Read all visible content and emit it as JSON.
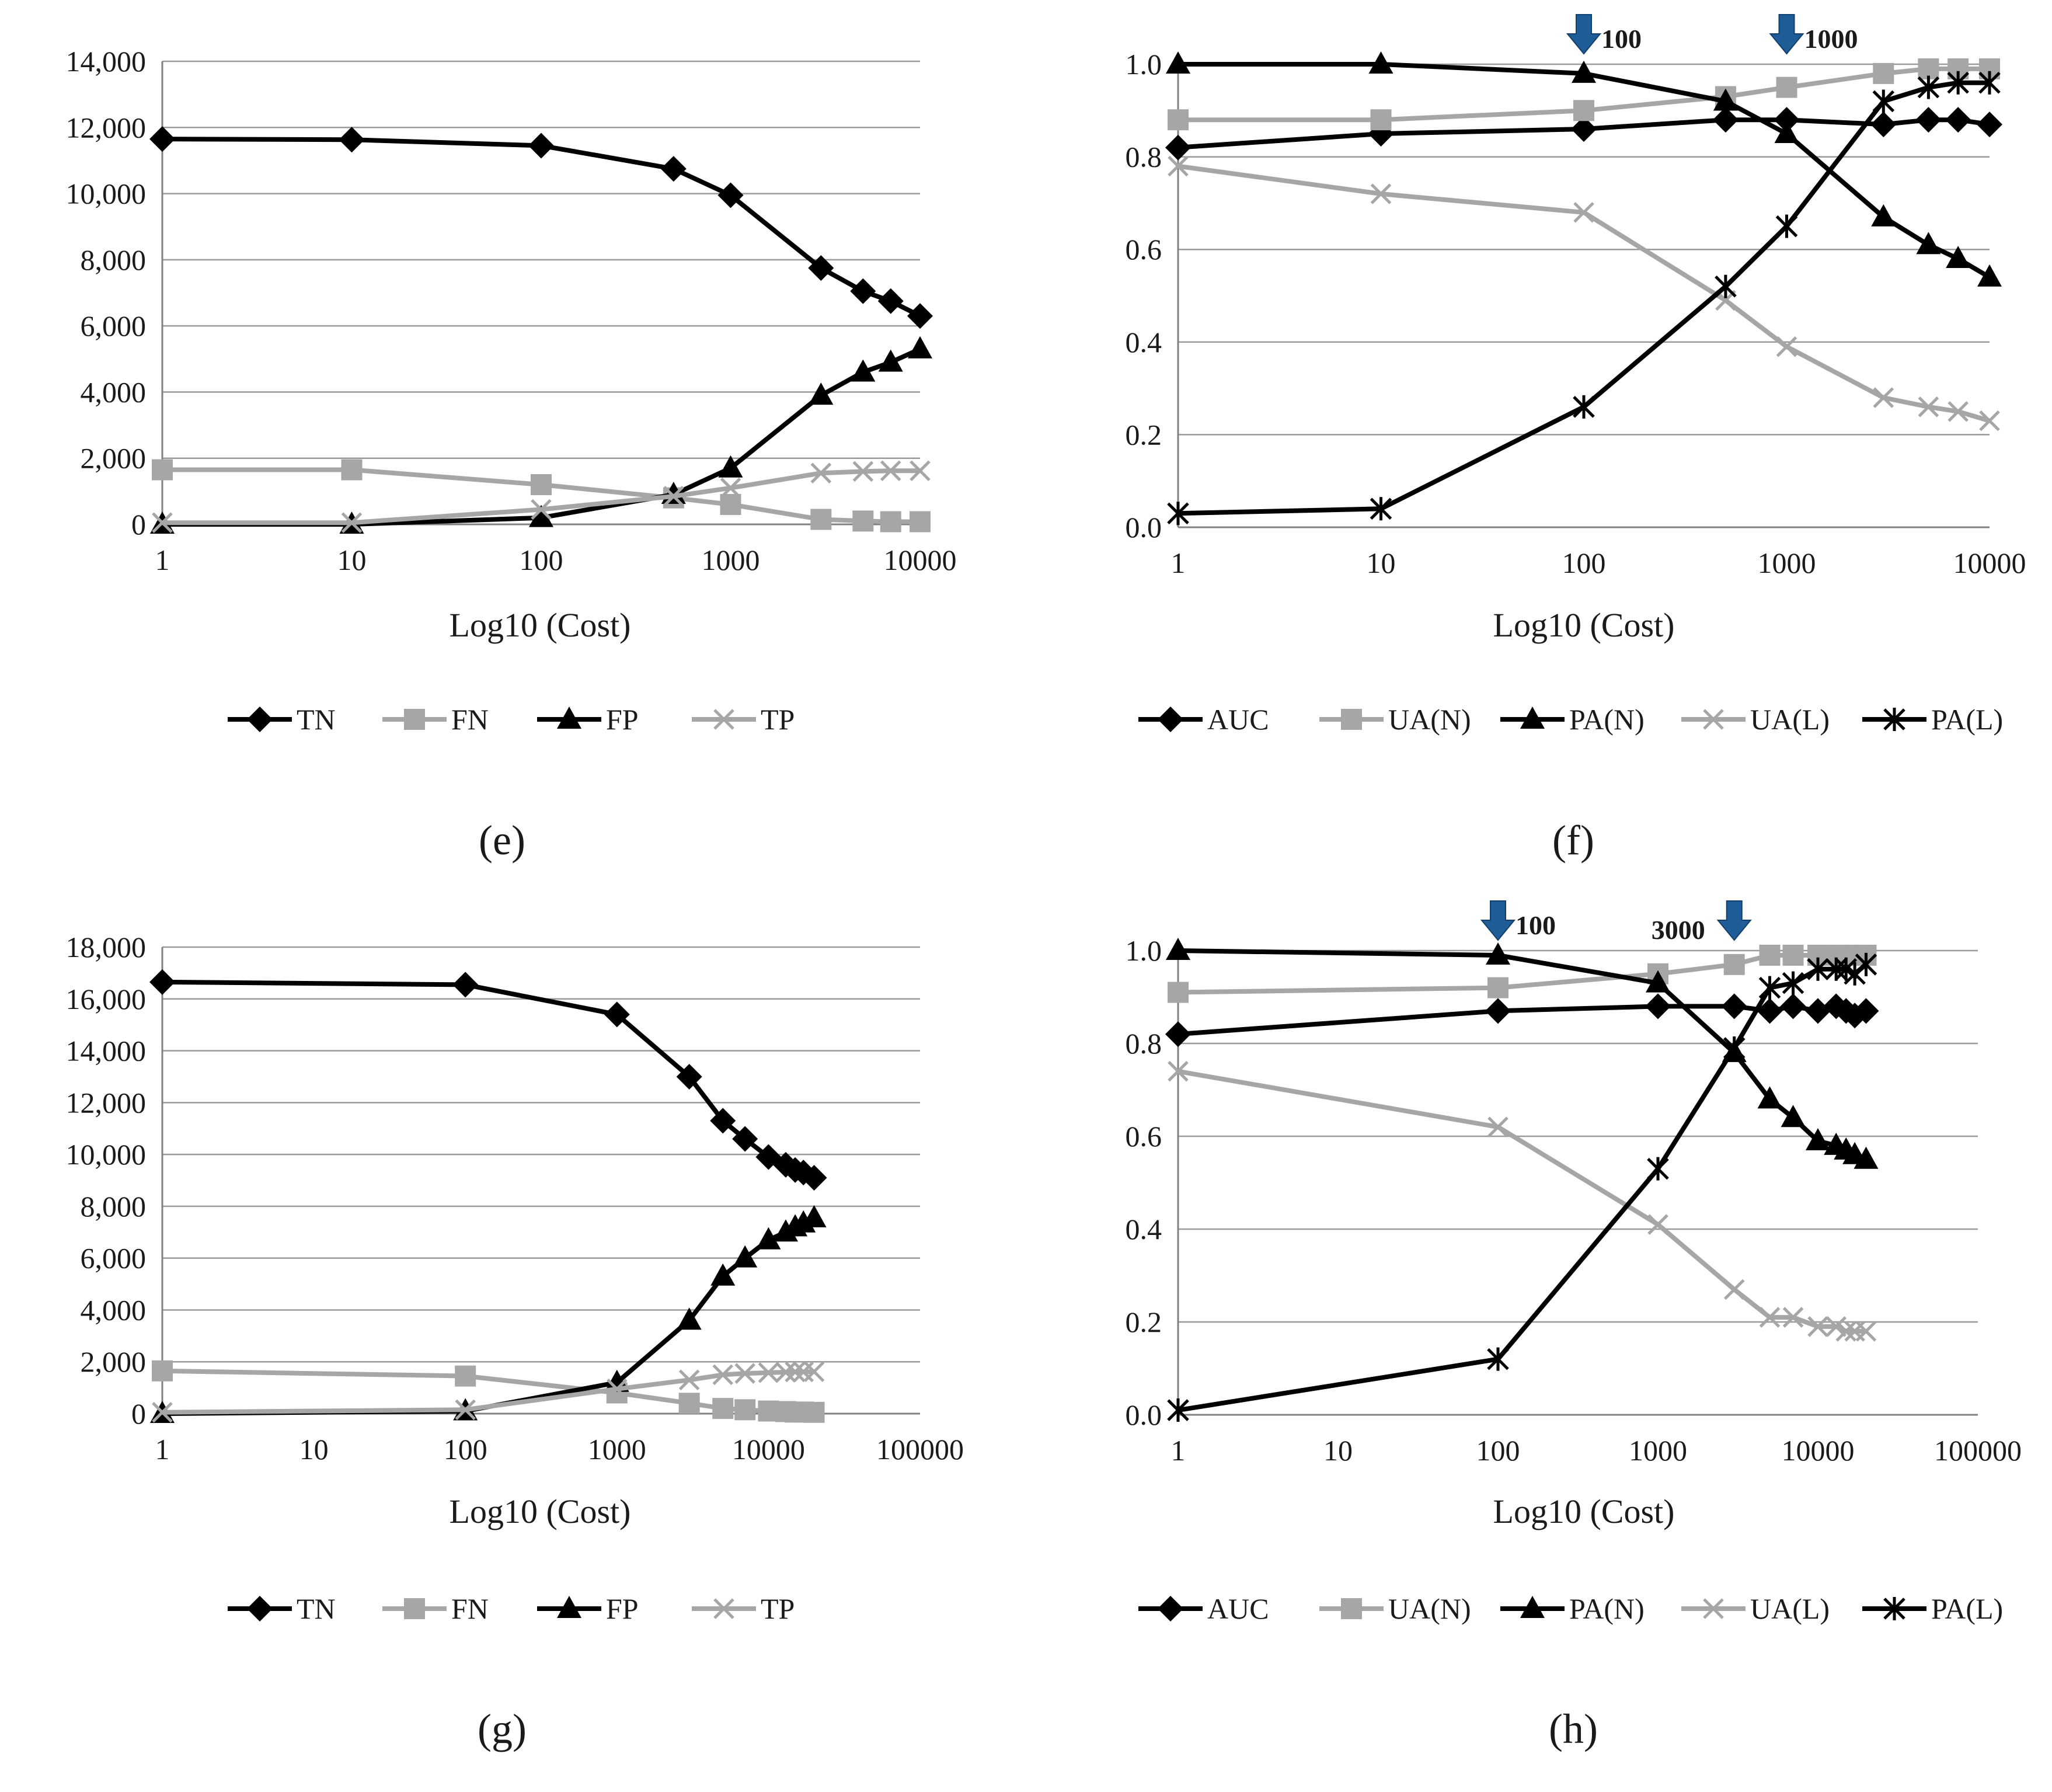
{
  "colors": {
    "black": "#000000",
    "gray": "#a6a6a6",
    "grid": "#9a9a9a",
    "arrow": "#1f5d99",
    "text": "#1a1a1a"
  },
  "chart_data": [
    {
      "panel": "(e)",
      "type": "line",
      "xlabel": "Log10 (Cost)",
      "ylabel": "",
      "xscale": "log",
      "xlim": [
        1,
        10000
      ],
      "xticks": [
        1,
        10,
        100,
        1000,
        10000
      ],
      "xtick_labels": [
        "1",
        "10",
        "100",
        "1000",
        "10000"
      ],
      "ylim": [
        0,
        14000
      ],
      "yticks": [
        0,
        2000,
        4000,
        6000,
        8000,
        10000,
        12000,
        14000
      ],
      "ytick_labels": [
        "0",
        "2,000",
        "4,000",
        "6,000",
        "8,000",
        "10,000",
        "12,000",
        "14,000"
      ],
      "x": [
        1,
        10,
        100,
        500,
        1000,
        3000,
        5000,
        7000,
        10000
      ],
      "series": [
        {
          "name": "TN",
          "color": "#000000",
          "marker": "diamond",
          "values": [
            11650,
            11630,
            11450,
            10750,
            9950,
            7750,
            7050,
            6750,
            6300
          ]
        },
        {
          "name": "FN",
          "color": "#a6a6a6",
          "marker": "square",
          "values": [
            1650,
            1650,
            1200,
            800,
            600,
            150,
            100,
            80,
            80
          ]
        },
        {
          "name": "FP",
          "color": "#000000",
          "marker": "triangle",
          "values": [
            0,
            0,
            200,
            900,
            1700,
            3900,
            4600,
            4900,
            5300
          ]
        },
        {
          "name": "TP",
          "color": "#a6a6a6",
          "marker": "x",
          "values": [
            50,
            50,
            450,
            850,
            1100,
            1550,
            1600,
            1620,
            1620
          ]
        }
      ],
      "legend": "bottom",
      "annotations": []
    },
    {
      "panel": "(f)",
      "type": "line",
      "xlabel": "Log10 (Cost)",
      "ylabel": "",
      "xscale": "log",
      "xlim": [
        1,
        10000
      ],
      "xticks": [
        1,
        10,
        100,
        1000,
        10000
      ],
      "xtick_labels": [
        "1",
        "10",
        "100",
        "1000",
        "10000"
      ],
      "ylim": [
        0,
        1
      ],
      "yticks": [
        0,
        0.2,
        0.4,
        0.6,
        0.8,
        1.0
      ],
      "ytick_labels": [
        "0.0",
        "0.2",
        "0.4",
        "0.6",
        "0.8",
        "1.0"
      ],
      "x": [
        1,
        10,
        100,
        500,
        1000,
        3000,
        5000,
        7000,
        10000
      ],
      "series": [
        {
          "name": "AUC",
          "color": "#000000",
          "marker": "diamond",
          "values": [
            0.82,
            0.85,
            0.86,
            0.88,
            0.88,
            0.87,
            0.88,
            0.88,
            0.87
          ]
        },
        {
          "name": "UA(N)",
          "color": "#a6a6a6",
          "marker": "square",
          "values": [
            0.88,
            0.88,
            0.9,
            0.93,
            0.95,
            0.98,
            0.99,
            0.99,
            0.99
          ]
        },
        {
          "name": "PA(N)",
          "color": "#000000",
          "marker": "triangle",
          "values": [
            1.0,
            1.0,
            0.98,
            0.92,
            0.85,
            0.67,
            0.61,
            0.58,
            0.54
          ]
        },
        {
          "name": "UA(L)",
          "color": "#a6a6a6",
          "marker": "x",
          "values": [
            0.78,
            0.72,
            0.68,
            0.49,
            0.39,
            0.28,
            0.26,
            0.25,
            0.23
          ]
        },
        {
          "name": "PA(L)",
          "color": "#000000",
          "marker": "asterisk",
          "values": [
            0.03,
            0.04,
            0.26,
            0.52,
            0.65,
            0.92,
            0.95,
            0.96,
            0.96
          ]
        }
      ],
      "legend": "bottom",
      "annotations": [
        {
          "x": 100,
          "text": "100",
          "arrow": true
        },
        {
          "x": 1000,
          "text": "1000",
          "arrow": true
        }
      ]
    },
    {
      "panel": "(g)",
      "type": "line",
      "xlabel": "Log10 (Cost)",
      "ylabel": "",
      "xscale": "log",
      "xlim": [
        1,
        100000
      ],
      "xticks": [
        1,
        10,
        100,
        1000,
        10000,
        100000
      ],
      "xtick_labels": [
        "1",
        "10",
        "100",
        "1000",
        "10000",
        "100000"
      ],
      "ylim": [
        0,
        18000
      ],
      "yticks": [
        0,
        2000,
        4000,
        6000,
        8000,
        10000,
        12000,
        14000,
        16000,
        18000
      ],
      "ytick_labels": [
        "0",
        "2,000",
        "4,000",
        "6,000",
        "8,000",
        "10,000",
        "12,000",
        "14,000",
        "16,000",
        "18,000"
      ],
      "x": [
        1,
        100,
        1000,
        3000,
        5000,
        7000,
        10000,
        13000,
        15000,
        17000,
        20000
      ],
      "series": [
        {
          "name": "TN",
          "color": "#000000",
          "marker": "diamond",
          "values": [
            16650,
            16550,
            15400,
            13000,
            11300,
            10600,
            9900,
            9600,
            9400,
            9300,
            9100
          ]
        },
        {
          "name": "FN",
          "color": "#a6a6a6",
          "marker": "square",
          "values": [
            1650,
            1450,
            800,
            400,
            200,
            150,
            100,
            80,
            60,
            60,
            50
          ]
        },
        {
          "name": "FP",
          "color": "#000000",
          "marker": "triangle",
          "values": [
            0,
            100,
            1200,
            3600,
            5300,
            6000,
            6700,
            7000,
            7200,
            7350,
            7550
          ]
        },
        {
          "name": "TP",
          "color": "#a6a6a6",
          "marker": "x",
          "values": [
            50,
            150,
            950,
            1300,
            1500,
            1550,
            1580,
            1600,
            1610,
            1610,
            1620
          ]
        }
      ],
      "legend": "bottom",
      "annotations": []
    },
    {
      "panel": "(h)",
      "type": "line",
      "xlabel": "Log10 (Cost)",
      "ylabel": "",
      "xscale": "log",
      "xlim": [
        1,
        100000
      ],
      "xticks": [
        1,
        10,
        100,
        1000,
        10000,
        100000
      ],
      "xtick_labels": [
        "1",
        "10",
        "100",
        "1000",
        "10000",
        "100000"
      ],
      "ylim": [
        0,
        1
      ],
      "yticks": [
        0,
        0.2,
        0.4,
        0.6,
        0.8,
        1.0
      ],
      "ytick_labels": [
        "0.0",
        "0.2",
        "0.4",
        "0.6",
        "0.8",
        "1.0"
      ],
      "x": [
        1,
        100,
        1000,
        3000,
        5000,
        7000,
        10000,
        13000,
        15000,
        17000,
        20000
      ],
      "series": [
        {
          "name": "AUC",
          "color": "#000000",
          "marker": "diamond",
          "values": [
            0.82,
            0.87,
            0.88,
            0.88,
            0.87,
            0.88,
            0.87,
            0.88,
            0.87,
            0.86,
            0.87
          ]
        },
        {
          "name": "UA(N)",
          "color": "#a6a6a6",
          "marker": "square",
          "values": [
            0.91,
            0.92,
            0.95,
            0.97,
            0.99,
            0.99,
            0.99,
            0.99,
            0.99,
            0.99,
            0.99
          ]
        },
        {
          "name": "PA(N)",
          "color": "#000000",
          "marker": "triangle",
          "values": [
            1.0,
            0.99,
            0.93,
            0.78,
            0.68,
            0.64,
            0.59,
            0.58,
            0.57,
            0.56,
            0.55
          ]
        },
        {
          "name": "UA(L)",
          "color": "#a6a6a6",
          "marker": "x",
          "values": [
            0.74,
            0.62,
            0.41,
            0.27,
            0.21,
            0.21,
            0.19,
            0.19,
            0.18,
            0.18,
            0.18
          ]
        },
        {
          "name": "PA(L)",
          "color": "#000000",
          "marker": "asterisk",
          "values": [
            0.01,
            0.12,
            0.53,
            0.79,
            0.92,
            0.93,
            0.96,
            0.96,
            0.96,
            0.95,
            0.97
          ]
        }
      ],
      "legend": "bottom",
      "annotations": [
        {
          "x": 100,
          "text": "100",
          "arrow": true
        },
        {
          "x": 3000,
          "text": "3000",
          "arrow": true
        }
      ]
    }
  ]
}
